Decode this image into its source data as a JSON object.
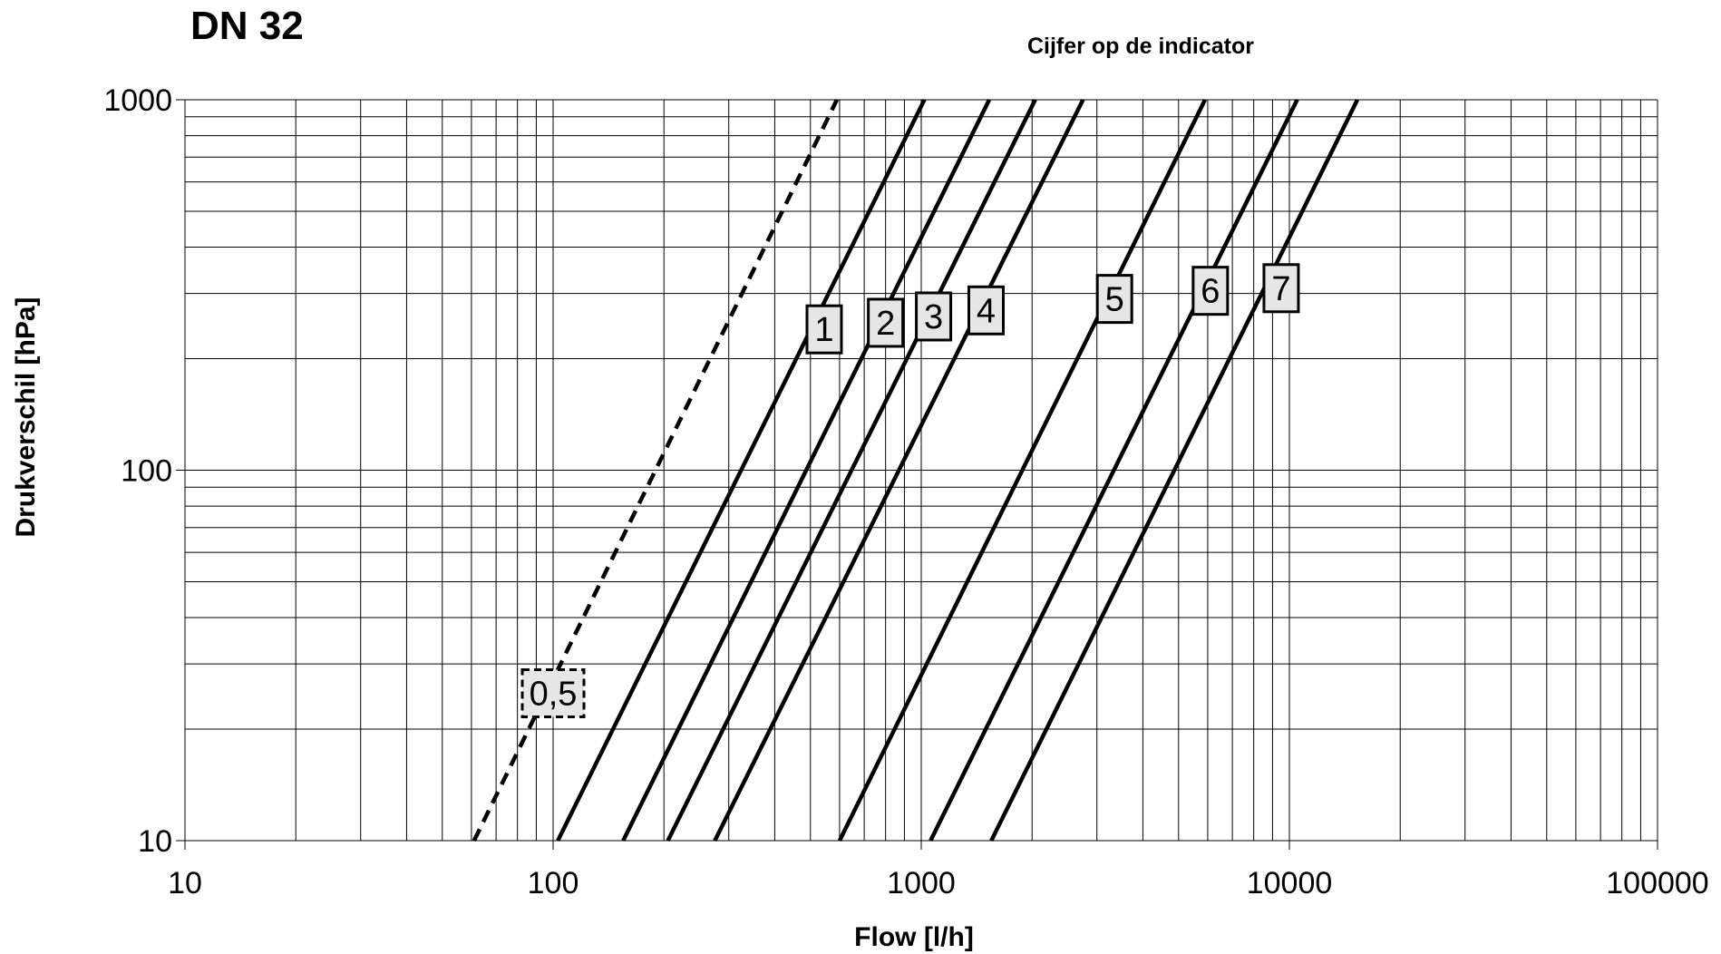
{
  "chart_data": {
    "type": "line",
    "title": "DN 32",
    "subtitle": "Cijfer op de indicator",
    "xlabel": "Flow [l/h]",
    "ylabel": "Drukverschil [hPa]",
    "xscale": "log",
    "yscale": "log",
    "xlim": [
      10,
      100000
    ],
    "ylim": [
      10,
      1000
    ],
    "x_ticks": [
      "10",
      "100",
      "1000",
      "10000",
      "100000"
    ],
    "y_ticks": [
      "10",
      "100",
      "1000"
    ],
    "grid": true,
    "series": [
      {
        "name": "0,5",
        "style": "dashed",
        "x": [
          61,
          590
        ],
        "y": [
          10,
          1000
        ],
        "label_at": [
          100,
          25
        ]
      },
      {
        "name": "1",
        "style": "solid",
        "x": [
          103,
          1020
        ],
        "y": [
          10,
          1000
        ],
        "label_at": [
          545,
          240
        ]
      },
      {
        "name": "2",
        "style": "solid",
        "x": [
          155,
          1530
        ],
        "y": [
          10,
          1000
        ],
        "label_at": [
          800,
          250
        ]
      },
      {
        "name": "3",
        "style": "solid",
        "x": [
          205,
          2040
        ],
        "y": [
          10,
          1000
        ],
        "label_at": [
          1080,
          260
        ]
      },
      {
        "name": "4",
        "style": "solid",
        "x": [
          275,
          2750
        ],
        "y": [
          10,
          1000
        ],
        "label_at": [
          1500,
          270
        ]
      },
      {
        "name": "5",
        "style": "solid",
        "x": [
          600,
          5900
        ],
        "y": [
          10,
          1000
        ],
        "label_at": [
          3350,
          290
        ]
      },
      {
        "name": "6",
        "style": "solid",
        "x": [
          1060,
          10500
        ],
        "y": [
          10,
          1000
        ],
        "label_at": [
          6100,
          305
        ]
      },
      {
        "name": "7",
        "style": "solid",
        "x": [
          1550,
          15300
        ],
        "y": [
          10,
          1000
        ],
        "label_at": [
          9500,
          310
        ]
      }
    ]
  }
}
